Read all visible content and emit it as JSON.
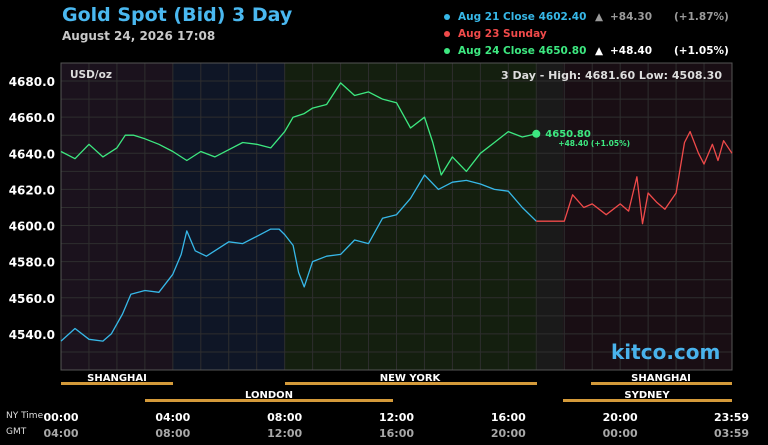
{
  "title": "Gold Spot (Bid) 3 Day",
  "subtitle": "August 24, 2026 17:08",
  "legend": [
    {
      "label": "Aug 21 Close 4602.40",
      "arrow": "▲",
      "change": "+84.30",
      "pct": "(+1.87%)",
      "color": "#37b8e8",
      "change_color": "#9a9a9a"
    },
    {
      "label": "Aug 23 Sunday",
      "arrow": "",
      "change": "",
      "pct": "",
      "color": "#f04a4a",
      "change_color": "#ffffff"
    },
    {
      "label": "Aug 24 Close 4650.80",
      "arrow": "▲",
      "change": "+48.40",
      "pct": "(+1.05%)",
      "color": "#3de880",
      "change_color": "#ffffff"
    }
  ],
  "unit": "USD/oz",
  "hilo": "3 Day - High: 4681.60  Low: 4508.30",
  "brand": "kitco.com",
  "ny_time_label": "NY Time",
  "gmt_label": "GMT",
  "last_marker": {
    "price": "4650.80",
    "change": "+48.40 (+1.05%)"
  },
  "sessions": {
    "shanghai": "SHANGHAI",
    "london": "LONDON",
    "newyork": "NEW YORK",
    "shanghai2": "SHANGHAI",
    "sydney": "SYDNEY"
  },
  "colors": {
    "aug21": "#37b8e8",
    "aug23": "#f04a4a",
    "aug24": "#3de880",
    "session_bar": "#d49a3a"
  },
  "chart_data": {
    "type": "line",
    "title": "Gold Spot (Bid) 3 Day",
    "ylabel": "USD/oz",
    "ylim": [
      4520,
      4690
    ],
    "xlim": [
      0,
      24
    ],
    "yticks": [
      4540,
      4560,
      4580,
      4600,
      4620,
      4640,
      4660,
      4680
    ],
    "ytick_labels": [
      "4540.0",
      "4560.0",
      "4580.0",
      "4600.0",
      "4620.0",
      "4640.0",
      "4660.0",
      "4680.0"
    ],
    "xticks": [
      0,
      4,
      8,
      12,
      16,
      20,
      23.983
    ],
    "xtick_labels_ny": [
      "00:00",
      "04:00",
      "08:00",
      "12:00",
      "16:00",
      "20:00",
      "23:59"
    ],
    "xtick_labels_gmt": [
      "04:00",
      "08:00",
      "12:00",
      "16:00",
      "20:00",
      "00:00",
      "03:59"
    ],
    "grid": true,
    "series": [
      {
        "name": "Aug 21",
        "x": [
          0,
          0.5,
          1,
          1.5,
          1.8,
          2.2,
          2.5,
          3,
          3.5,
          4,
          4.3,
          4.5,
          4.8,
          5.2,
          5.5,
          6,
          6.5,
          7,
          7.5,
          7.8,
          8,
          8.3,
          8.5,
          8.7,
          9,
          9.5,
          10,
          10.5,
          11,
          11.5,
          12,
          12.5,
          13,
          13.5,
          14,
          14.5,
          15,
          15.5,
          16,
          16.5,
          17
        ],
        "y": [
          4536,
          4543,
          4537,
          4536,
          4540,
          4551,
          4562,
          4564,
          4563,
          4573,
          4584,
          4597,
          4586,
          4583,
          4586,
          4591,
          4590,
          4594,
          4598,
          4598,
          4595,
          4589,
          4574,
          4566,
          4580,
          4583,
          4584,
          4592,
          4590,
          4604,
          4606,
          4615,
          4628,
          4620,
          4624,
          4625,
          4623,
          4620,
          4619,
          4610,
          4602.4
        ]
      },
      {
        "name": "Aug 23",
        "x": [
          17,
          18,
          18.3,
          18.7,
          19,
          19.5,
          20,
          20.3,
          20.6,
          20.8,
          21,
          21.3,
          21.6,
          22,
          22.3,
          22.5,
          22.8,
          23,
          23.3,
          23.5,
          23.7,
          24
        ],
        "y": [
          4602.4,
          4602.4,
          4617,
          4610,
          4612,
          4606,
          4612,
          4608,
          4627,
          4601,
          4618,
          4613,
          4609,
          4618,
          4646,
          4652,
          4640,
          4634,
          4645,
          4636,
          4647,
          4640
        ]
      },
      {
        "name": "Aug 24",
        "x": [
          0,
          0.5,
          1,
          1.5,
          2,
          2.3,
          2.6,
          3,
          3.5,
          4,
          4.5,
          5,
          5.5,
          6,
          6.5,
          7,
          7.5,
          8,
          8.3,
          8.7,
          9,
          9.5,
          10,
          10.5,
          11,
          11.5,
          12,
          12.5,
          13,
          13.3,
          13.6,
          14,
          14.5,
          15,
          15.5,
          16,
          16.5,
          17
        ],
        "y": [
          4641,
          4637,
          4645,
          4638,
          4643,
          4650,
          4650,
          4648,
          4645,
          4641,
          4636,
          4641,
          4638,
          4642,
          4646,
          4645,
          4643,
          4652,
          4660,
          4662,
          4665,
          4667,
          4679,
          4672,
          4674,
          4670,
          4668,
          4654,
          4660,
          4646,
          4628,
          4638,
          4630,
          4640,
          4646,
          4652,
          4649,
          4650.8
        ]
      }
    ]
  }
}
